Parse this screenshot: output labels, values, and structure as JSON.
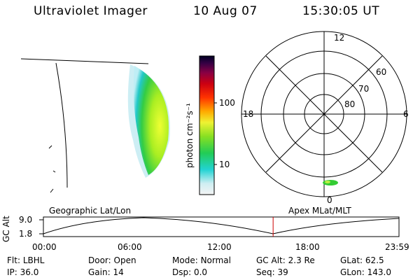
{
  "header": {
    "instrument": "Ultraviolet Imager",
    "date": "10 Aug 07",
    "time": "15:30:05 UT"
  },
  "colorbar": {
    "label": "photon cm⁻²s⁻¹",
    "ticks": [
      "100",
      "10"
    ]
  },
  "polar_plot": {
    "mlt_labels": [
      "12",
      "18",
      "6",
      "0"
    ],
    "mlat_labels": [
      "60",
      "70",
      "80"
    ]
  },
  "panels": {
    "left_title": "Geographic Lat/Lon",
    "right_title": "Apex MLat/MLT"
  },
  "timeline": {
    "axis_label": "GC Alt",
    "y_ticks": [
      "9.0",
      "1.8"
    ],
    "x_ticks": [
      "00:00",
      "06:00",
      "12:00",
      "18:00",
      "23:59"
    ],
    "current_time_marker_fraction": 0.646
  },
  "metadata": {
    "row1": [
      {
        "key": "Flt:",
        "value": "LBHL"
      },
      {
        "key": "Door:",
        "value": "Open"
      },
      {
        "key": "Mode:",
        "value": "Normal"
      },
      {
        "key": "GC Alt:",
        "value": "2.3 Re"
      },
      {
        "key": "GLat:",
        "value": "62.5"
      }
    ],
    "row2": [
      {
        "key": "IP:",
        "value": "36.0"
      },
      {
        "key": "Gain:",
        "value": "14"
      },
      {
        "key": "Dsp:",
        "value": "0.0"
      },
      {
        "key": "Seq:",
        "value": "39"
      },
      {
        "key": "GLon:",
        "value": "143.0"
      }
    ]
  },
  "colors": {
    "marker": "#cc0000",
    "aurora_outer": "#9fe6f0",
    "aurora_mid": "#33cc33",
    "aurora_inner": "#ddff33"
  }
}
